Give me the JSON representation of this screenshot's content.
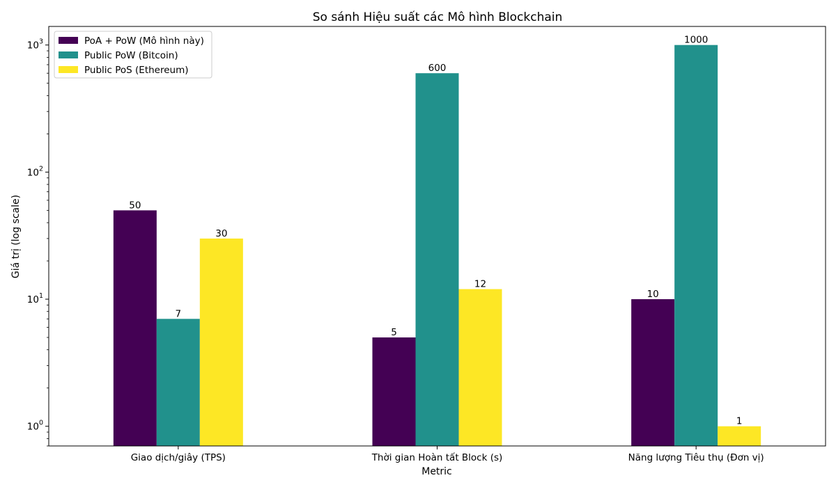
{
  "chart_data": {
    "type": "bar",
    "title": "So sánh Hiệu suất các Mô hình Blockchain",
    "xlabel": "Metric",
    "ylabel": "Giá trị (log scale)",
    "yscale": "log",
    "ylim": [
      0.7,
      1400
    ],
    "yticks": [
      {
        "value": 1,
        "base": "10",
        "exp": "0"
      },
      {
        "value": 10,
        "base": "10",
        "exp": "1"
      },
      {
        "value": 100,
        "base": "10",
        "exp": "2"
      },
      {
        "value": 1000,
        "base": "10",
        "exp": "3"
      }
    ],
    "categories": [
      "Giao dịch/giây (TPS)",
      "Thời gian Hoàn tất Block (s)",
      "Năng lượng Tiêu thụ (Đơn vị)"
    ],
    "series": [
      {
        "name": "PoA + PoW (Mô hình này)",
        "color": "#440154",
        "values": [
          50,
          5,
          10
        ],
        "labels": [
          "50",
          "5",
          "10"
        ]
      },
      {
        "name": "Public PoW (Bitcoin)",
        "color": "#21918c",
        "values": [
          7,
          600,
          1000
        ],
        "labels": [
          "7",
          "600",
          "1000"
        ]
      },
      {
        "name": "Public PoS (Ethereum)",
        "color": "#fde725",
        "values": [
          30,
          12,
          1
        ],
        "labels": [
          "30",
          "12",
          "1"
        ]
      }
    ],
    "legend_position": "top-left",
    "grid": false
  }
}
